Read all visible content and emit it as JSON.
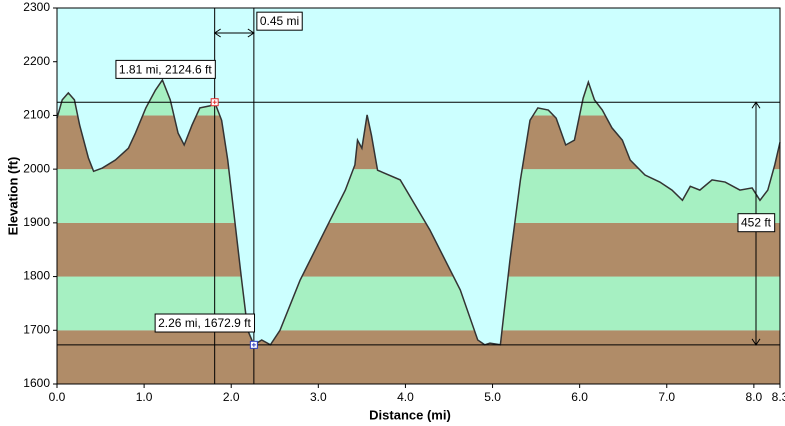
{
  "chart_data": {
    "type": "area",
    "x_label": "Distance (mi)",
    "y_label": "Elevation (ft)",
    "xlim": [
      0,
      8.3
    ],
    "ylim": [
      1600,
      2300
    ],
    "xticks": [
      {
        "value": 0,
        "label": "0.0"
      },
      {
        "value": 1,
        "label": "1.0"
      },
      {
        "value": 2,
        "label": "2.0"
      },
      {
        "value": 3,
        "label": "3.0"
      },
      {
        "value": 4,
        "label": "4.0"
      },
      {
        "value": 5,
        "label": "5.0"
      },
      {
        "value": 6,
        "label": "6.0"
      },
      {
        "value": 7,
        "label": "7.0"
      },
      {
        "value": 8,
        "label": "8.0"
      },
      {
        "value": 8.3,
        "label": "8.3"
      }
    ],
    "yticks": [
      1600,
      1700,
      1800,
      1900,
      2000,
      2100,
      2200,
      2300
    ],
    "background": "#ccffff",
    "band_colors": [
      "#b08c68",
      "#a6f0c2"
    ],
    "line_color": "#333333",
    "x": [
      0,
      0.06,
      0.13,
      0.2,
      0.26,
      0.36,
      0.42,
      0.52,
      0.67,
      0.82,
      0.9,
      1.02,
      1.13,
      1.21,
      1.3,
      1.39,
      1.46,
      1.55,
      1.64,
      1.76,
      1.81,
      1.89,
      1.96,
      2.04,
      2.12,
      2.19,
      2.26,
      2.35,
      2.45,
      2.56,
      2.79,
      3.08,
      3.31,
      3.42,
      3.45,
      3.5,
      3.56,
      3.61,
      3.68,
      3.94,
      4.28,
      4.63,
      4.83,
      4.91,
      4.97,
      5.09,
      5.2,
      5.32,
      5.43,
      5.52,
      5.64,
      5.73,
      5.84,
      5.94,
      6.04,
      6.1,
      6.17,
      6.26,
      6.37,
      6.49,
      6.58,
      6.75,
      6.92,
      7.06,
      7.18,
      7.27,
      7.38,
      7.52,
      7.67,
      7.84,
      7.98,
      8.07,
      8.16,
      8.24,
      8.3
    ],
    "values": [
      2095,
      2129,
      2142,
      2129,
      2082,
      2021,
      1996,
      2002,
      2017,
      2039,
      2067,
      2114,
      2147,
      2166,
      2129,
      2067,
      2045,
      2082,
      2114,
      2118,
      2124.6,
      2091,
      2017,
      1905,
      1793,
      1700,
      1672.9,
      1682,
      1673,
      1700,
      1793,
      1887,
      1961,
      2008,
      2054,
      2039,
      2101,
      2063,
      1998,
      1980,
      1887,
      1775,
      1682,
      1673,
      1676,
      1673,
      1831,
      1980,
      2091,
      2114,
      2110,
      2095,
      2045,
      2054,
      2132,
      2162,
      2129,
      2110,
      2077,
      2054,
      2017,
      1989,
      1976,
      1961,
      1942,
      1968,
      1961,
      1980,
      1976,
      1961,
      1965,
      1942,
      1961,
      2008,
      2050
    ],
    "cursors": [
      {
        "x": 1.81,
        "y": 2124.6,
        "label": "1.81 mi, 2124.6 ft",
        "color": "#e03030"
      },
      {
        "x": 2.26,
        "y": 1672.9,
        "label": "2.26 mi, 1672.9 ft",
        "color": "#3040c0"
      }
    ],
    "distance": {
      "value": 0.45,
      "label": "0.45 mi"
    },
    "rise": {
      "value": 452,
      "label": "452 ft"
    }
  }
}
